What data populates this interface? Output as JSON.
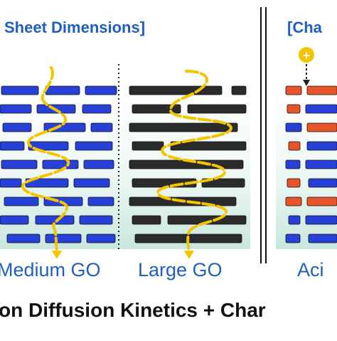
{
  "panels": {
    "left_title": "Sheet Dimensions]",
    "right_title": "[Cha",
    "charge_symbol": "+",
    "caption_medium": "Medium GO",
    "caption_large": "Large GO",
    "caption_acid": "Aci"
  },
  "bottom_text": "on Diffusion Kinetics + Char",
  "colors": {
    "title_text": "#1f5fbf",
    "medium_sheet": "#2740d8",
    "large_sheet": "#2b2b2b",
    "acid_sheet_orange": "#e8542a",
    "acid_sheet_blue": "#2740d8",
    "ion_path": "#f5c400",
    "panel_bg_top": "#ffffff",
    "panel_bg_bottom": "#cde9e2"
  }
}
